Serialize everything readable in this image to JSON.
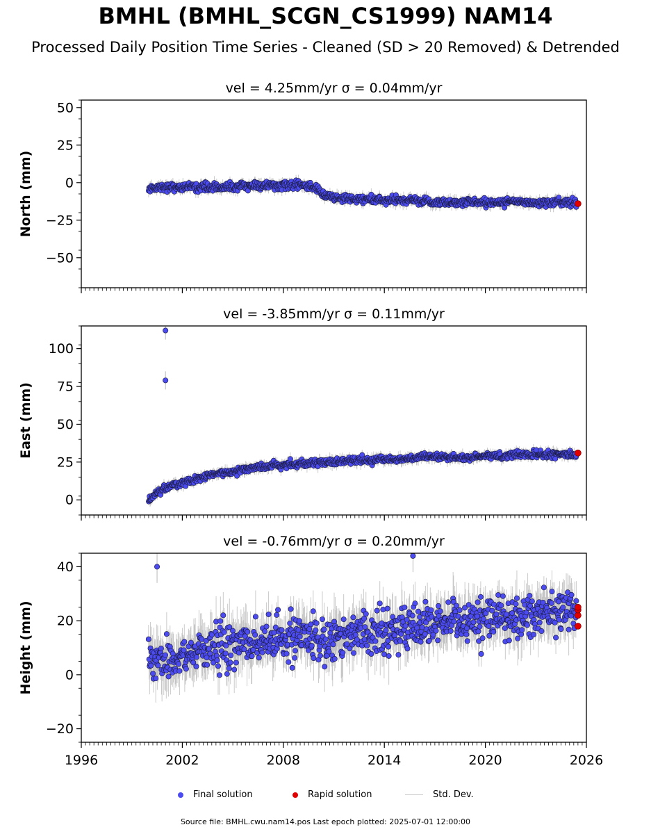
{
  "figure": {
    "title": "BMHL (BMHL_SCGN_CS1999) NAM14",
    "subtitle": "Processed Daily Position Time Series - Cleaned (SD > 20 Removed) & Detrended",
    "footer": "Source file: BMHL.cwu.nam14.pos  Last epoch plotted: 2025-07-01 12:00:00"
  },
  "legend": {
    "final": "Final solution",
    "rapid": "Rapid solution",
    "std": "Std. Dev."
  },
  "colors": {
    "final": "#4b4bf0",
    "rapid": "#e00000",
    "std": "#b8b8b8",
    "edge": "#1a1a3a"
  },
  "chart_data": [
    {
      "type": "scatter",
      "title": "vel = 4.25mm/yr   σ = 0.04mm/yr",
      "xlabel": "",
      "ylabel": "North (mm)",
      "xlim": [
        1996,
        2026
      ],
      "ylim": [
        -70,
        55
      ],
      "yticks": [
        -50,
        -25,
        0,
        25,
        50
      ],
      "xticks": [
        1996,
        2002,
        2008,
        2014,
        2020,
        2026
      ],
      "show_xtick_labels": false,
      "grid": false,
      "series": [
        {
          "kind": "final",
          "x": [
            2000.0,
            2000.5,
            2001,
            2002,
            2003,
            2004,
            2005,
            2006,
            2007,
            2008,
            2009,
            2009.5,
            2010,
            2010.5,
            2011,
            2012,
            2013,
            2014,
            2015,
            2016,
            2017,
            2018,
            2019,
            2020,
            2021,
            2022,
            2023,
            2024,
            2025,
            2025.4
          ],
          "y": [
            -4,
            -3,
            -3,
            -3,
            -3,
            -3,
            -3,
            -2,
            -2,
            -2,
            -2,
            -2,
            -4,
            -9,
            -10,
            -11,
            -11,
            -12,
            -12,
            -12,
            -13,
            -13,
            -13,
            -13,
            -13,
            -13,
            -13,
            -13,
            -13,
            -13
          ],
          "noise": 2.2,
          "sd": 2.5
        },
        {
          "kind": "rapid",
          "x": [
            2025.5
          ],
          "y": [
            -14
          ]
        }
      ]
    },
    {
      "type": "scatter",
      "title": "vel = -3.85mm/yr   σ = 0.11mm/yr",
      "xlabel": "",
      "ylabel": "East (mm)",
      "xlim": [
        1996,
        2026
      ],
      "ylim": [
        -10,
        115
      ],
      "yticks": [
        0,
        25,
        50,
        75,
        100
      ],
      "xticks": [
        1996,
        2002,
        2008,
        2014,
        2020,
        2026
      ],
      "show_xtick_labels": false,
      "grid": false,
      "series": [
        {
          "kind": "final",
          "x": [
            2000.0,
            2000.3,
            2000.7,
            2001,
            2001.5,
            2002,
            2003,
            2004,
            2005,
            2006,
            2007,
            2008,
            2009,
            2010,
            2011,
            2012,
            2013,
            2014,
            2015,
            2016,
            2017,
            2018,
            2019,
            2020,
            2021,
            2022,
            2023,
            2024,
            2025,
            2025.4
          ],
          "y": [
            0,
            3,
            6,
            8,
            10,
            11,
            14,
            17,
            19,
            21,
            22,
            23,
            24,
            25,
            25,
            26,
            26,
            27,
            27,
            28,
            28,
            28,
            28,
            29,
            29,
            30,
            30,
            30,
            30,
            30
          ],
          "noise": 1.8,
          "sd": 2.5
        },
        {
          "kind": "outlier",
          "x": [
            2001.0,
            2001.0
          ],
          "y": [
            112,
            79
          ]
        },
        {
          "kind": "rapid",
          "x": [
            2025.5
          ],
          "y": [
            31
          ]
        }
      ]
    },
    {
      "type": "scatter",
      "title": "vel = -0.76mm/yr   σ = 0.20mm/yr",
      "xlabel": "",
      "ylabel": "Height (mm)",
      "xlim": [
        1996,
        2026
      ],
      "ylim": [
        -25,
        45
      ],
      "yticks": [
        -20,
        0,
        20,
        40
      ],
      "xticks": [
        1996,
        2002,
        2008,
        2014,
        2020,
        2026
      ],
      "show_xtick_labels": true,
      "grid": false,
      "series": [
        {
          "kind": "final",
          "x": [
            2000.0,
            2000.5,
            2001,
            2002,
            2003,
            2004,
            2005,
            2006,
            2007,
            2008,
            2009,
            2010,
            2011,
            2012,
            2013,
            2014,
            2015,
            2016,
            2017,
            2018,
            2019,
            2020,
            2021,
            2022,
            2023,
            2024,
            2025,
            2025.4
          ],
          "y": [
            5,
            6,
            5,
            6,
            9,
            10,
            11,
            12,
            12,
            13,
            13,
            14,
            14,
            15,
            16,
            17,
            17,
            18,
            18,
            19,
            19,
            20,
            21,
            22,
            23,
            23,
            23,
            23
          ],
          "noise": 6.5,
          "sd": 6
        },
        {
          "kind": "outlier",
          "x": [
            2000.5,
            2015.7
          ],
          "y": [
            40,
            44
          ]
        },
        {
          "kind": "rapid",
          "x": [
            2025.5,
            2025.5,
            2025.5,
            2025.5
          ],
          "y": [
            18,
            22,
            24,
            25
          ]
        }
      ]
    }
  ]
}
